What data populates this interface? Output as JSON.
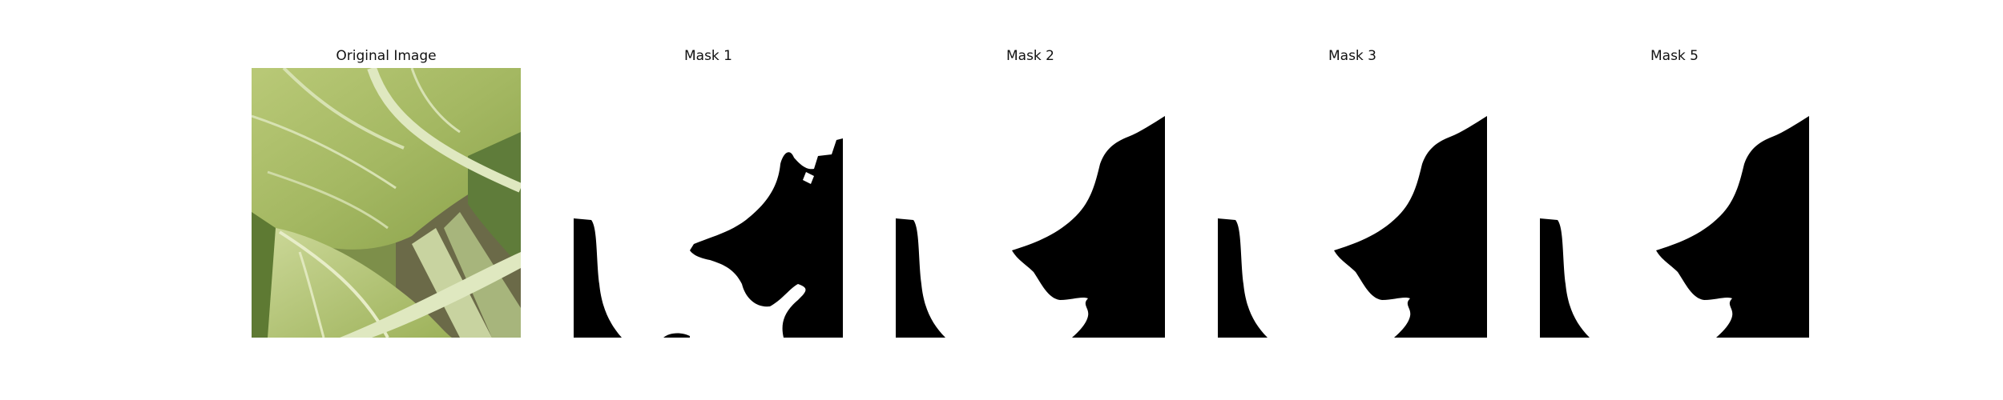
{
  "figure": {
    "panels": [
      {
        "title": "Original Image",
        "kind": "photo"
      },
      {
        "title": "Mask 1",
        "kind": "mask"
      },
      {
        "title": "Mask 2",
        "kind": "mask"
      },
      {
        "title": "Mask 3",
        "kind": "mask"
      },
      {
        "title": "Mask 5",
        "kind": "mask"
      }
    ],
    "colors": {
      "mask_foreground": "#000000",
      "mask_background": "#ffffff",
      "leaf_light": "#c9d68a",
      "leaf_mid": "#9fb35a",
      "leaf_dark": "#6f8a3a",
      "vein": "#e3ebc2"
    }
  }
}
